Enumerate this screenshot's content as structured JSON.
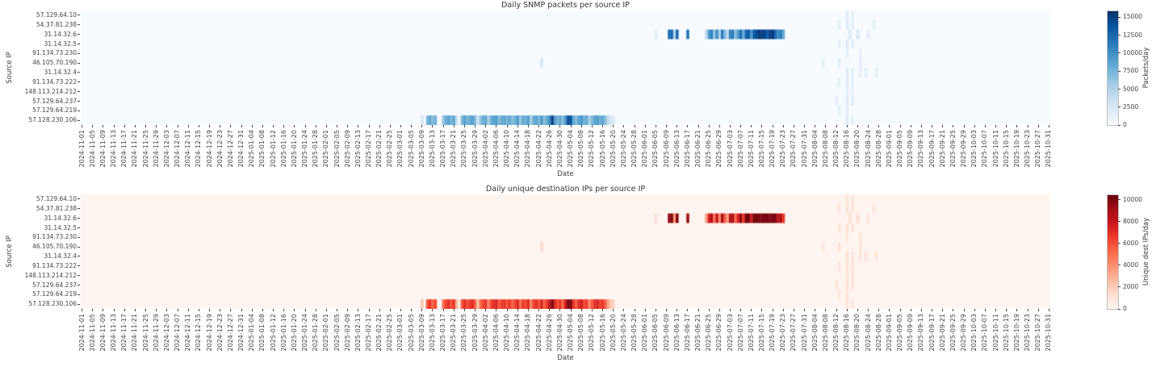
{
  "figure": {
    "kind": "dual-heatmap-figure",
    "background": "#ffffff"
  },
  "x_axis": {
    "label": "Date",
    "start": "2024-11-01",
    "end": "2025-10-31",
    "tick_step_days": 4,
    "tick_labels": [
      "2024-11-01",
      "2024-11-05",
      "2024-11-09",
      "2024-11-13",
      "2024-11-17",
      "2024-11-21",
      "2024-11-25",
      "2024-11-29",
      "2024-12-03",
      "2024-12-07",
      "2024-12-11",
      "2024-12-15",
      "2024-12-19",
      "2024-12-23",
      "2024-12-27",
      "2024-12-31",
      "2025-01-04",
      "2025-01-08",
      "2025-01-12",
      "2025-01-16",
      "2025-01-20",
      "2025-01-24",
      "2025-01-28",
      "2025-02-01",
      "2025-02-05",
      "2025-02-09",
      "2025-02-13",
      "2025-02-17",
      "2025-02-21",
      "2025-02-25",
      "2025-03-01",
      "2025-03-05",
      "2025-03-09",
      "2025-03-13",
      "2025-03-17",
      "2025-03-21",
      "2025-03-25",
      "2025-03-29",
      "2025-04-02",
      "2025-04-06",
      "2025-04-10",
      "2025-04-14",
      "2025-04-18",
      "2025-04-22",
      "2025-04-26",
      "2025-04-30",
      "2025-05-04",
      "2025-05-08",
      "2025-05-12",
      "2025-05-16",
      "2025-05-20",
      "2025-05-24",
      "2025-05-28",
      "2025-06-01",
      "2025-06-05",
      "2025-06-09",
      "2025-06-13",
      "2025-06-17",
      "2025-06-21",
      "2025-06-25",
      "2025-06-29",
      "2025-07-03",
      "2025-07-07",
      "2025-07-11",
      "2025-07-15",
      "2025-07-19",
      "2025-07-23",
      "2025-07-27",
      "2025-07-31",
      "2025-08-04",
      "2025-08-08",
      "2025-08-12",
      "2025-08-16",
      "2025-08-20",
      "2025-08-24",
      "2025-08-28",
      "2025-09-01",
      "2025-09-05",
      "2025-09-09",
      "2025-09-13",
      "2025-09-17",
      "2025-09-21",
      "2025-09-25",
      "2025-09-29",
      "2025-10-03",
      "2025-10-07",
      "2025-10-11",
      "2025-10-15",
      "2025-10-19",
      "2025-10-23",
      "2025-10-27",
      "2025-10-31"
    ]
  },
  "y_axis": {
    "label": "Source IP"
  },
  "chart_data": [
    {
      "type": "heatmap",
      "title": "Daily SNMP packets per source IP",
      "xlabel": "Date",
      "ylabel": "Source IP",
      "rows": [
        "57.129.64.10",
        "54.37.81.238",
        "31.14.32.6",
        "31.14.32.5",
        "91.134.73.230",
        "46.105.70.190",
        "31.14.32.4",
        "91.134.73.222",
        "148.113.214.212",
        "57.129.64.237",
        "57.129.64.219",
        "57.128.230.106"
      ],
      "x_start": "2024-11-01",
      "x_end": "2025-10-31",
      "colorbar": {
        "label": "Packets/day",
        "ticks": [
          0,
          2500,
          5000,
          7500,
          10000,
          12500,
          15000
        ],
        "vmin": 0,
        "vmax": 15800,
        "colormap": "Blues",
        "stops": [
          [
            247,
            251,
            255
          ],
          [
            222,
            235,
            247
          ],
          [
            198,
            219,
            239
          ],
          [
            158,
            202,
            225
          ],
          [
            107,
            174,
            214
          ],
          [
            66,
            146,
            198
          ],
          [
            33,
            113,
            181
          ],
          [
            8,
            81,
            156
          ],
          [
            8,
            48,
            107
          ]
        ]
      },
      "runs": [
        {
          "row": "57.128.230.106",
          "start": "2025-03-09",
          "values": [
            2800,
            0,
            7200,
            8400,
            6800,
            7600,
            0,
            0,
            6200,
            7800,
            8600,
            7400,
            8200,
            3400,
            0,
            7000,
            8800,
            7600,
            8200,
            8800,
            7000,
            3000,
            6400,
            7800,
            8400,
            5200,
            7600,
            8800,
            9200,
            7000,
            8000,
            8600,
            7400,
            8200,
            6800,
            7800,
            9000,
            6200,
            8400,
            7600,
            8800,
            5400,
            8000,
            8600,
            7200,
            9400,
            6800,
            8200,
            10200,
            14800,
            9000,
            7600,
            8400,
            6600,
            9600,
            14200,
            13600,
            8200,
            7000,
            8800,
            9400,
            7600,
            8200,
            5200,
            7000,
            8600,
            9200,
            7800,
            8400,
            7000,
            4200,
            2600,
            2200
          ]
        },
        {
          "row": "31.14.32.6",
          "start": "2025-06-05",
          "values": [
            1600,
            0,
            0,
            0,
            0,
            11800,
            12600,
            4800,
            12200,
            0,
            0,
            0,
            11600,
            0,
            0,
            0,
            0,
            0,
            0,
            4200,
            9200,
            11000,
            6200,
            10200,
            5200,
            11400,
            7200,
            4200,
            10600,
            11200,
            6600,
            9200,
            12000,
            8200,
            12600,
            13000,
            9600,
            13400,
            14000,
            15400,
            15000,
            14400,
            13200,
            14800,
            15200,
            12200,
            10200,
            11200,
            8200
          ]
        }
      ],
      "cells": [
        [
          "46.105.70.190",
          "2025-04-23",
          2600
        ],
        [
          "57.129.64.10",
          "2025-08-16",
          1800
        ],
        [
          "57.129.64.10",
          "2025-08-18",
          1400
        ],
        [
          "54.37.81.238",
          "2025-08-13",
          1600
        ],
        [
          "54.37.81.238",
          "2025-08-16",
          2000
        ],
        [
          "54.37.81.238",
          "2025-08-18",
          1400
        ],
        [
          "54.37.81.238",
          "2025-08-26",
          1400
        ],
        [
          "31.14.32.6",
          "2025-08-17",
          2200
        ],
        [
          "31.14.32.6",
          "2025-08-20",
          2400
        ],
        [
          "31.14.32.6",
          "2025-08-24",
          1600
        ],
        [
          "31.14.32.5",
          "2025-08-13",
          1400
        ],
        [
          "31.14.32.5",
          "2025-08-16",
          1800
        ],
        [
          "31.14.32.5",
          "2025-08-18",
          1600
        ],
        [
          "91.134.73.230",
          "2025-08-16",
          1600
        ],
        [
          "91.134.73.230",
          "2025-08-21",
          1400
        ],
        [
          "46.105.70.190",
          "2025-08-07",
          1400
        ],
        [
          "46.105.70.190",
          "2025-08-13",
          1800
        ],
        [
          "46.105.70.190",
          "2025-08-21",
          1600
        ],
        [
          "31.14.32.4",
          "2025-08-16",
          2000
        ],
        [
          "31.14.32.4",
          "2025-08-18",
          1600
        ],
        [
          "31.14.32.4",
          "2025-08-21",
          1400
        ],
        [
          "31.14.32.4",
          "2025-08-23",
          1800
        ],
        [
          "31.14.32.4",
          "2025-08-27",
          1400
        ],
        [
          "91.134.73.222",
          "2025-08-13",
          1400
        ],
        [
          "91.134.73.222",
          "2025-08-16",
          1800
        ],
        [
          "91.134.73.222",
          "2025-08-18",
          1600
        ],
        [
          "148.113.214.212",
          "2025-08-16",
          1600
        ],
        [
          "148.113.214.212",
          "2025-08-18",
          1400
        ],
        [
          "57.129.64.237",
          "2025-08-12",
          1400
        ],
        [
          "57.129.64.237",
          "2025-08-16",
          1800
        ],
        [
          "57.129.64.237",
          "2025-08-18",
          1600
        ],
        [
          "57.129.64.219",
          "2025-08-13",
          1600
        ],
        [
          "57.129.64.219",
          "2025-08-16",
          1400
        ],
        [
          "57.128.230.106",
          "2025-08-16",
          1800
        ],
        [
          "57.128.230.106",
          "2025-08-18",
          1400
        ]
      ]
    },
    {
      "type": "heatmap",
      "title": "Daily unique destination IPs per source IP",
      "xlabel": "Date",
      "ylabel": "Source IP",
      "rows": [
        "57.129.64.10",
        "54.37.81.238",
        "31.14.32.6",
        "31.14.32.5",
        "91.134.73.230",
        "46.105.70.190",
        "31.14.32.4",
        "91.134.73.222",
        "148.113.214.212",
        "57.129.64.237",
        "57.129.64.219",
        "57.128.230.106"
      ],
      "x_start": "2024-11-01",
      "x_end": "2025-10-31",
      "colorbar": {
        "label": "Unique dest IPs/day",
        "ticks": [
          0,
          2000,
          4000,
          6000,
          8000,
          10000
        ],
        "vmin": 0,
        "vmax": 10400,
        "colormap": "Reds",
        "stops": [
          [
            255,
            245,
            240
          ],
          [
            254,
            224,
            210
          ],
          [
            252,
            187,
            161
          ],
          [
            252,
            146,
            114
          ],
          [
            251,
            106,
            74
          ],
          [
            239,
            59,
            44
          ],
          [
            203,
            24,
            29
          ],
          [
            165,
            15,
            21
          ],
          [
            103,
            0,
            13
          ]
        ]
      },
      "runs": [
        {
          "row": "57.128.230.106",
          "start": "2025-03-09",
          "values": [
            2200,
            0,
            5800,
            6700,
            5400,
            6100,
            0,
            0,
            5000,
            6200,
            6900,
            5900,
            6600,
            2700,
            0,
            5600,
            7000,
            6100,
            6600,
            7000,
            5600,
            2400,
            5100,
            6200,
            6700,
            4200,
            6100,
            7000,
            7400,
            5600,
            6400,
            6900,
            5900,
            6600,
            5400,
            6200,
            7200,
            5000,
            6700,
            6100,
            7000,
            4300,
            6400,
            6900,
            5800,
            7500,
            5400,
            6600,
            8200,
            10000,
            7200,
            6100,
            6700,
            5300,
            7700,
            10000,
            10000,
            6600,
            5600,
            7000,
            7500,
            6100,
            6600,
            4200,
            5600,
            6900,
            7400,
            6200,
            6700,
            5600,
            3400,
            2100,
            1800
          ]
        },
        {
          "row": "31.14.32.6",
          "start": "2025-06-05",
          "values": [
            1300,
            0,
            0,
            0,
            0,
            9400,
            10000,
            3800,
            9800,
            0,
            0,
            0,
            9300,
            0,
            0,
            0,
            0,
            0,
            0,
            3400,
            7400,
            8800,
            5000,
            8200,
            4200,
            9100,
            5800,
            3400,
            8500,
            9000,
            5300,
            7400,
            9600,
            6600,
            10000,
            10000,
            7700,
            10000,
            10000,
            10000,
            10000,
            10000,
            10000,
            10000,
            10000,
            9800,
            8200,
            9000,
            6600
          ]
        }
      ],
      "cells": [
        [
          "46.105.70.190",
          "2025-04-23",
          1500
        ],
        [
          "57.129.64.10",
          "2025-08-16",
          1100
        ],
        [
          "57.129.64.10",
          "2025-08-18",
          900
        ],
        [
          "54.37.81.238",
          "2025-08-13",
          1000
        ],
        [
          "54.37.81.238",
          "2025-08-16",
          1200
        ],
        [
          "54.37.81.238",
          "2025-08-18",
          900
        ],
        [
          "54.37.81.238",
          "2025-08-26",
          900
        ],
        [
          "31.14.32.6",
          "2025-08-17",
          1300
        ],
        [
          "31.14.32.6",
          "2025-08-20",
          1400
        ],
        [
          "31.14.32.6",
          "2025-08-24",
          1000
        ],
        [
          "31.14.32.5",
          "2025-08-13",
          900
        ],
        [
          "31.14.32.5",
          "2025-08-16",
          1100
        ],
        [
          "31.14.32.5",
          "2025-08-18",
          1000
        ],
        [
          "91.134.73.230",
          "2025-08-16",
          1000
        ],
        [
          "91.134.73.230",
          "2025-08-21",
          900
        ],
        [
          "46.105.70.190",
          "2025-08-07",
          900
        ],
        [
          "46.105.70.190",
          "2025-08-13",
          1100
        ],
        [
          "46.105.70.190",
          "2025-08-21",
          1000
        ],
        [
          "31.14.32.4",
          "2025-08-16",
          1200
        ],
        [
          "31.14.32.4",
          "2025-08-18",
          1000
        ],
        [
          "31.14.32.4",
          "2025-08-21",
          900
        ],
        [
          "31.14.32.4",
          "2025-08-23",
          1100
        ],
        [
          "31.14.32.4",
          "2025-08-27",
          900
        ],
        [
          "91.134.73.222",
          "2025-08-13",
          900
        ],
        [
          "91.134.73.222",
          "2025-08-16",
          1100
        ],
        [
          "91.134.73.222",
          "2025-08-18",
          1000
        ],
        [
          "148.113.214.212",
          "2025-08-16",
          1000
        ],
        [
          "148.113.214.212",
          "2025-08-18",
          900
        ],
        [
          "57.129.64.237",
          "2025-08-12",
          900
        ],
        [
          "57.129.64.237",
          "2025-08-16",
          1100
        ],
        [
          "57.129.64.237",
          "2025-08-18",
          1000
        ],
        [
          "57.129.64.219",
          "2025-08-13",
          1000
        ],
        [
          "57.129.64.219",
          "2025-08-16",
          900
        ],
        [
          "57.128.230.106",
          "2025-08-16",
          1100
        ],
        [
          "57.128.230.106",
          "2025-08-18",
          900
        ]
      ]
    }
  ]
}
